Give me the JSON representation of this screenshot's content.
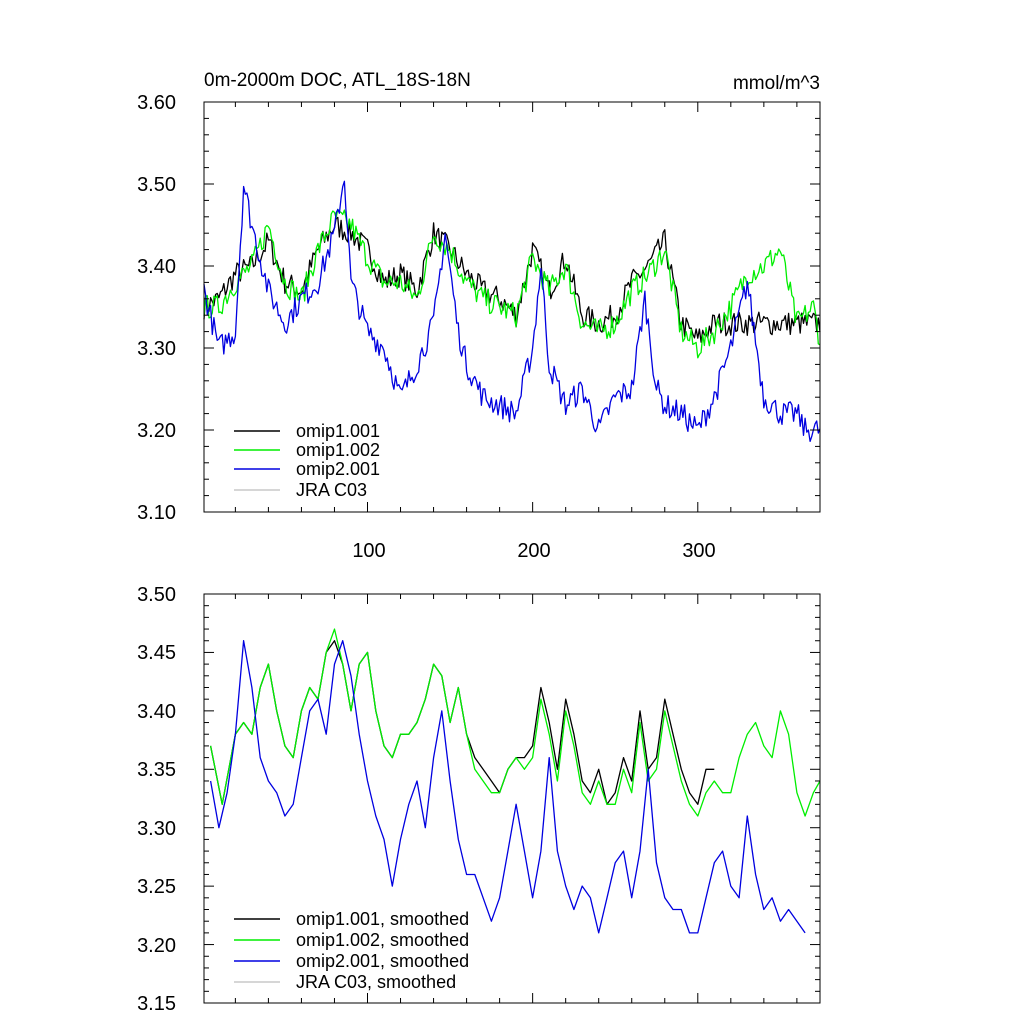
{
  "chart_data": [
    {
      "type": "line",
      "title": "0m-2000m DOC, ATL_18S-18N",
      "units": "mmol/m^3",
      "xlim": [
        1,
        374
      ],
      "ylim": [
        3.1,
        3.6
      ],
      "yticks": [
        "3.10",
        "3.20",
        "3.30",
        "3.40",
        "3.50",
        "3.60"
      ],
      "xticks": [
        "100",
        "200",
        "300"
      ],
      "legend_position": "bottom-left",
      "series": [
        {
          "name": "omip1.001",
          "color": "#000000",
          "x_end": 374,
          "x": [
            1,
            10,
            20,
            30,
            40,
            50,
            60,
            70,
            80,
            90,
            100,
            110,
            120,
            130,
            140,
            150,
            160,
            170,
            180,
            190,
            200,
            210,
            220,
            230,
            240,
            250,
            260,
            270,
            280,
            290,
            300,
            310
          ],
          "y": [
            3.35,
            3.36,
            3.39,
            3.4,
            3.43,
            3.38,
            3.37,
            3.42,
            3.45,
            3.44,
            3.42,
            3.38,
            3.39,
            3.37,
            3.44,
            3.42,
            3.39,
            3.37,
            3.36,
            3.34,
            3.42,
            3.37,
            3.41,
            3.34,
            3.33,
            3.34,
            3.38,
            3.4,
            3.43,
            3.33,
            3.31,
            3.33
          ]
        },
        {
          "name": "omip1.002",
          "color": "#00ee00",
          "x_end": 374,
          "x": [
            1,
            10,
            20,
            30,
            40,
            50,
            60,
            70,
            80,
            90,
            100,
            110,
            120,
            130,
            140,
            150,
            160,
            170,
            180,
            190,
            200,
            210,
            220,
            230,
            240,
            250,
            260,
            270,
            280,
            290,
            300,
            310,
            320,
            330,
            340,
            350,
            360,
            370,
            374
          ],
          "y": [
            3.35,
            3.35,
            3.38,
            3.4,
            3.45,
            3.38,
            3.36,
            3.42,
            3.46,
            3.45,
            3.41,
            3.38,
            3.38,
            3.36,
            3.44,
            3.42,
            3.38,
            3.36,
            3.35,
            3.34,
            3.41,
            3.37,
            3.4,
            3.33,
            3.32,
            3.33,
            3.37,
            3.39,
            3.42,
            3.32,
            3.3,
            3.32,
            3.35,
            3.39,
            3.4,
            3.42,
            3.33,
            3.35,
            3.31
          ]
        },
        {
          "name": "omip2.001",
          "color": "#0000e0",
          "x_end": 374,
          "x": [
            1,
            10,
            20,
            25,
            30,
            40,
            50,
            60,
            70,
            80,
            86,
            90,
            100,
            110,
            120,
            130,
            140,
            147,
            155,
            160,
            170,
            180,
            190,
            200,
            205,
            210,
            220,
            230,
            240,
            250,
            260,
            268,
            275,
            280,
            290,
            300,
            310,
            320,
            330,
            340,
            350,
            360,
            365
          ],
          "y": [
            3.37,
            3.3,
            3.32,
            3.5,
            3.45,
            3.37,
            3.33,
            3.36,
            3.38,
            3.44,
            3.51,
            3.38,
            3.32,
            3.3,
            3.24,
            3.28,
            3.33,
            3.44,
            3.32,
            3.28,
            3.24,
            3.23,
            3.22,
            3.3,
            3.4,
            3.28,
            3.23,
            3.25,
            3.2,
            3.24,
            3.25,
            3.36,
            3.25,
            3.23,
            3.22,
            3.2,
            3.24,
            3.3,
            3.38,
            3.24,
            3.22,
            3.22,
            3.2
          ]
        },
        {
          "name": "JRA C03",
          "color": "#c8c8c8",
          "x": [],
          "y": []
        }
      ]
    },
    {
      "type": "line",
      "title": "",
      "xlim": [
        1,
        374
      ],
      "ylim": [
        3.15,
        3.5
      ],
      "yticks": [
        "3.15",
        "3.20",
        "3.25",
        "3.30",
        "3.35",
        "3.40",
        "3.45",
        "3.50"
      ],
      "xticks": [],
      "legend_position": "bottom-left",
      "series": [
        {
          "name": "omip1.001, smoothed",
          "color": "#000000",
          "x": [
            5,
            12,
            20,
            25,
            30,
            35,
            40,
            45,
            50,
            55,
            60,
            65,
            70,
            75,
            80,
            85,
            90,
            95,
            100,
            105,
            110,
            115,
            120,
            125,
            130,
            135,
            140,
            145,
            150,
            155,
            160,
            165,
            170,
            175,
            180,
            185,
            190,
            195,
            200,
            205,
            210,
            215,
            220,
            225,
            230,
            235,
            240,
            245,
            250,
            255,
            260,
            265,
            270,
            275,
            280,
            285,
            290,
            295,
            300,
            305,
            310
          ],
          "y": [
            3.37,
            3.32,
            3.38,
            3.39,
            3.38,
            3.42,
            3.44,
            3.4,
            3.37,
            3.36,
            3.4,
            3.42,
            3.41,
            3.45,
            3.46,
            3.44,
            3.4,
            3.44,
            3.45,
            3.4,
            3.37,
            3.36,
            3.38,
            3.38,
            3.39,
            3.41,
            3.44,
            3.43,
            3.39,
            3.42,
            3.38,
            3.36,
            3.35,
            3.34,
            3.33,
            3.35,
            3.36,
            3.36,
            3.37,
            3.42,
            3.39,
            3.35,
            3.41,
            3.38,
            3.34,
            3.33,
            3.35,
            3.32,
            3.33,
            3.36,
            3.34,
            3.4,
            3.35,
            3.36,
            3.41,
            3.38,
            3.35,
            3.33,
            3.32,
            3.35,
            3.35
          ]
        },
        {
          "name": "omip1.002, smoothed",
          "color": "#00ee00",
          "x": [
            5,
            12,
            20,
            25,
            30,
            35,
            40,
            45,
            50,
            55,
            60,
            65,
            70,
            75,
            80,
            85,
            90,
            95,
            100,
            105,
            110,
            115,
            120,
            125,
            130,
            135,
            140,
            145,
            150,
            155,
            160,
            165,
            170,
            175,
            180,
            185,
            190,
            195,
            200,
            205,
            210,
            215,
            220,
            225,
            230,
            235,
            240,
            245,
            250,
            255,
            260,
            265,
            270,
            275,
            280,
            285,
            290,
            295,
            300,
            305,
            310,
            315,
            320,
            325,
            330,
            335,
            340,
            345,
            350,
            355,
            360,
            365,
            370,
            374
          ],
          "y": [
            3.37,
            3.32,
            3.38,
            3.39,
            3.38,
            3.42,
            3.44,
            3.4,
            3.37,
            3.36,
            3.4,
            3.42,
            3.41,
            3.45,
            3.47,
            3.44,
            3.4,
            3.44,
            3.45,
            3.4,
            3.37,
            3.36,
            3.38,
            3.38,
            3.39,
            3.41,
            3.44,
            3.43,
            3.39,
            3.42,
            3.38,
            3.35,
            3.34,
            3.33,
            3.33,
            3.35,
            3.36,
            3.35,
            3.36,
            3.41,
            3.38,
            3.34,
            3.4,
            3.37,
            3.33,
            3.32,
            3.34,
            3.32,
            3.32,
            3.35,
            3.33,
            3.39,
            3.34,
            3.35,
            3.4,
            3.37,
            3.34,
            3.32,
            3.31,
            3.33,
            3.34,
            3.33,
            3.33,
            3.36,
            3.38,
            3.39,
            3.37,
            3.36,
            3.4,
            3.38,
            3.33,
            3.31,
            3.33,
            3.34
          ]
        },
        {
          "name": "omip2.001, smoothed",
          "color": "#0000e0",
          "x": [
            5,
            10,
            15,
            20,
            25,
            30,
            35,
            40,
            45,
            50,
            55,
            60,
            65,
            70,
            75,
            80,
            85,
            90,
            95,
            100,
            105,
            110,
            115,
            120,
            125,
            130,
            135,
            140,
            145,
            150,
            155,
            160,
            165,
            170,
            175,
            180,
            185,
            190,
            195,
            200,
            205,
            210,
            215,
            220,
            225,
            230,
            235,
            240,
            245,
            250,
            255,
            260,
            265,
            270,
            275,
            280,
            285,
            290,
            295,
            300,
            305,
            310,
            315,
            320,
            325,
            330,
            335,
            340,
            345,
            350,
            355,
            360,
            365
          ],
          "y": [
            3.34,
            3.3,
            3.33,
            3.38,
            3.46,
            3.42,
            3.36,
            3.34,
            3.33,
            3.31,
            3.32,
            3.36,
            3.4,
            3.41,
            3.38,
            3.44,
            3.46,
            3.43,
            3.38,
            3.34,
            3.31,
            3.29,
            3.25,
            3.29,
            3.32,
            3.34,
            3.3,
            3.36,
            3.4,
            3.34,
            3.29,
            3.26,
            3.26,
            3.24,
            3.22,
            3.24,
            3.28,
            3.32,
            3.28,
            3.24,
            3.28,
            3.36,
            3.28,
            3.25,
            3.23,
            3.25,
            3.24,
            3.21,
            3.24,
            3.27,
            3.28,
            3.24,
            3.28,
            3.35,
            3.27,
            3.24,
            3.23,
            3.23,
            3.21,
            3.21,
            3.24,
            3.27,
            3.28,
            3.25,
            3.24,
            3.31,
            3.26,
            3.23,
            3.24,
            3.22,
            3.23,
            3.22,
            3.21
          ]
        },
        {
          "name": "JRA C03, smoothed",
          "color": "#c8c8c8",
          "x": [],
          "y": []
        }
      ]
    }
  ]
}
